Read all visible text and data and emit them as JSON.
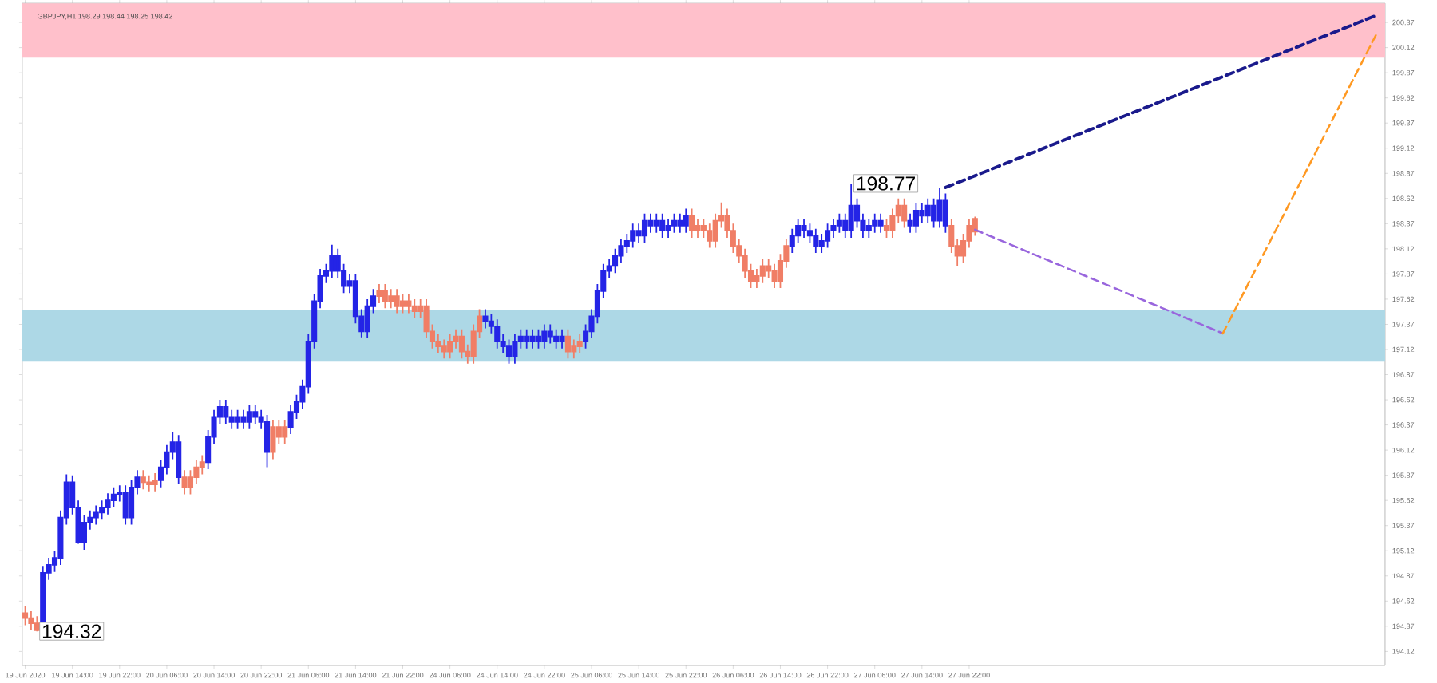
{
  "chart_data": {
    "type": "candlestick",
    "title": "GBPJPY,H1  198.29 198.44 198.25 198.42",
    "categories": [
      "19 Jun 2020",
      null,
      null,
      null,
      null,
      null,
      null,
      null,
      "19 Jun 14:00",
      null,
      null,
      null,
      null,
      null,
      null,
      null,
      "19 Jun 22:00",
      null,
      null,
      null,
      null,
      null,
      null,
      null,
      "20 Jun 06:00",
      null,
      null,
      null,
      null,
      null,
      null,
      null,
      "20 Jun 14:00",
      null,
      null,
      null,
      null,
      null,
      null,
      null,
      "20 Jun 22:00",
      null,
      null,
      null,
      null,
      null,
      null,
      null,
      "21 Jun 06:00",
      null,
      null,
      null,
      null,
      null,
      null,
      null,
      "21 Jun 14:00",
      null,
      null,
      null,
      null,
      null,
      null,
      null,
      "21 Jun 22:00",
      null,
      null,
      null,
      null,
      null,
      null,
      null,
      "24 Jun 06:00",
      null,
      null,
      null,
      null,
      null,
      null,
      null,
      "24 Jun 14:00",
      null,
      null,
      null,
      null,
      null,
      null,
      null,
      "24 Jun 22:00",
      null,
      null,
      null,
      null,
      null,
      null,
      null,
      "25 Jun 06:00",
      null,
      null,
      null,
      null,
      null,
      null,
      null,
      "25 Jun 14:00",
      null,
      null,
      null,
      null,
      null,
      null,
      null,
      "25 Jun 22:00",
      null,
      null,
      null,
      null,
      null,
      null,
      null,
      "26 Jun 06:00",
      null,
      null,
      null,
      null,
      null,
      null,
      null,
      "26 Jun 14:00",
      null,
      null,
      null,
      null,
      null,
      null,
      null,
      "26 Jun 22:00",
      null,
      null,
      null,
      null,
      null,
      null,
      null,
      "27 Jun 06:00",
      null,
      null,
      null,
      null,
      null,
      null,
      null,
      "27 Jun 14:00",
      null,
      null,
      null,
      null,
      null,
      null,
      null,
      "27 Jun 22:00",
      null,
      null,
      null,
      null,
      null,
      null,
      null,
      null,
      null,
      null,
      null,
      null,
      null,
      null,
      null,
      null,
      null,
      null,
      null,
      null,
      null,
      null,
      null,
      null,
      null,
      null,
      null,
      null,
      null,
      null,
      null,
      null,
      null,
      null,
      null,
      null,
      null,
      null,
      null,
      null,
      null,
      null,
      null,
      null,
      null,
      null,
      null,
      null,
      null,
      null,
      null,
      null,
      null,
      null,
      null,
      null,
      null,
      null,
      null,
      null,
      null,
      null,
      null,
      null,
      null,
      null,
      null,
      null,
      null,
      null
    ],
    "ohlc": [
      [
        194.5,
        194.57,
        194.38,
        194.45
      ],
      [
        194.45,
        194.52,
        194.33,
        194.4
      ],
      [
        194.4,
        194.47,
        194.32,
        194.33
      ],
      [
        194.33,
        194.97,
        194.33,
        194.9
      ],
      [
        194.9,
        195.05,
        194.83,
        194.98
      ],
      [
        194.98,
        195.12,
        194.91,
        195.05
      ],
      [
        195.05,
        195.52,
        194.98,
        195.45
      ],
      [
        195.45,
        195.88,
        195.38,
        195.8
      ],
      [
        195.8,
        195.87,
        195.48,
        195.55
      ],
      [
        195.55,
        195.62,
        195.19,
        195.2
      ],
      [
        195.2,
        195.47,
        195.13,
        195.4
      ],
      [
        195.4,
        195.52,
        195.33,
        195.45
      ],
      [
        195.45,
        195.57,
        195.38,
        195.5
      ],
      [
        195.5,
        195.62,
        195.43,
        195.55
      ],
      [
        195.55,
        195.69,
        195.48,
        195.62
      ],
      [
        195.62,
        195.75,
        195.55,
        195.68
      ],
      [
        195.68,
        195.77,
        195.61,
        195.7
      ],
      [
        195.7,
        195.77,
        195.38,
        195.45
      ],
      [
        195.45,
        195.82,
        195.38,
        195.75
      ],
      [
        195.75,
        195.92,
        195.68,
        195.85
      ],
      [
        195.85,
        195.92,
        195.73,
        195.8
      ],
      [
        195.8,
        195.87,
        195.71,
        195.78
      ],
      [
        195.78,
        195.89,
        195.71,
        195.82
      ],
      [
        195.82,
        196.02,
        195.75,
        195.95
      ],
      [
        195.95,
        196.17,
        195.88,
        196.1
      ],
      [
        196.1,
        196.3,
        196.03,
        196.2
      ],
      [
        196.2,
        196.27,
        195.78,
        195.85
      ],
      [
        195.85,
        195.92,
        195.68,
        195.75
      ],
      [
        195.75,
        195.92,
        195.68,
        195.85
      ],
      [
        195.85,
        196.02,
        195.78,
        195.95
      ],
      [
        195.95,
        196.07,
        195.88,
        196.0
      ],
      [
        196.0,
        196.32,
        195.93,
        196.25
      ],
      [
        196.25,
        196.52,
        196.18,
        196.45
      ],
      [
        196.45,
        196.62,
        196.38,
        196.55
      ],
      [
        196.55,
        196.62,
        196.38,
        196.45
      ],
      [
        196.45,
        196.52,
        196.33,
        196.4
      ],
      [
        196.4,
        196.52,
        196.33,
        196.45
      ],
      [
        196.45,
        196.52,
        196.33,
        196.4
      ],
      [
        196.4,
        196.57,
        196.33,
        196.5
      ],
      [
        196.5,
        196.57,
        196.38,
        196.45
      ],
      [
        196.45,
        196.52,
        196.33,
        196.4
      ],
      [
        196.4,
        196.47,
        195.95,
        196.1
      ],
      [
        196.1,
        196.42,
        196.03,
        196.35
      ],
      [
        196.35,
        196.42,
        196.18,
        196.25
      ],
      [
        196.25,
        196.42,
        196.18,
        196.35
      ],
      [
        196.35,
        196.57,
        196.28,
        196.5
      ],
      [
        196.5,
        196.67,
        196.43,
        196.6
      ],
      [
        196.6,
        196.82,
        196.53,
        196.75
      ],
      [
        196.75,
        197.27,
        196.68,
        197.2
      ],
      [
        197.2,
        197.67,
        197.13,
        197.6
      ],
      [
        197.6,
        197.92,
        197.53,
        197.85
      ],
      [
        197.85,
        197.97,
        197.78,
        197.9
      ],
      [
        197.9,
        198.16,
        197.83,
        198.05
      ],
      [
        198.05,
        198.12,
        197.83,
        197.9
      ],
      [
        197.9,
        197.97,
        197.68,
        197.75
      ],
      [
        197.75,
        197.87,
        197.68,
        197.8
      ],
      [
        197.8,
        197.87,
        197.38,
        197.45
      ],
      [
        197.45,
        197.52,
        197.24,
        197.3
      ],
      [
        197.3,
        197.62,
        197.23,
        197.55
      ],
      [
        197.55,
        197.72,
        197.48,
        197.65
      ],
      [
        197.65,
        197.77,
        197.58,
        197.7
      ],
      [
        197.7,
        197.77,
        197.53,
        197.6
      ],
      [
        197.6,
        197.72,
        197.53,
        197.65
      ],
      [
        197.65,
        197.72,
        197.48,
        197.55
      ],
      [
        197.55,
        197.67,
        197.48,
        197.6
      ],
      [
        197.6,
        197.67,
        197.48,
        197.55
      ],
      [
        197.55,
        197.62,
        197.43,
        197.5
      ],
      [
        197.5,
        197.62,
        197.43,
        197.55
      ],
      [
        197.55,
        197.62,
        197.23,
        197.3
      ],
      [
        197.3,
        197.37,
        197.13,
        197.2
      ],
      [
        197.2,
        197.27,
        197.08,
        197.15
      ],
      [
        197.15,
        197.22,
        197.03,
        197.1
      ],
      [
        197.1,
        197.27,
        197.03,
        197.2
      ],
      [
        197.2,
        197.32,
        197.13,
        197.25
      ],
      [
        197.25,
        197.32,
        197.03,
        197.1
      ],
      [
        197.1,
        197.17,
        196.98,
        197.05
      ],
      [
        197.05,
        197.37,
        196.98,
        197.3
      ],
      [
        197.3,
        197.52,
        197.23,
        197.45
      ],
      [
        197.45,
        197.52,
        197.33,
        197.4
      ],
      [
        197.4,
        197.47,
        197.28,
        197.35
      ],
      [
        197.35,
        197.42,
        197.13,
        197.2
      ],
      [
        197.2,
        197.27,
        197.08,
        197.15
      ],
      [
        197.15,
        197.22,
        196.98,
        197.05
      ],
      [
        197.05,
        197.27,
        196.98,
        197.2
      ],
      [
        197.2,
        197.32,
        197.13,
        197.25
      ],
      [
        197.25,
        197.32,
        197.13,
        197.2
      ],
      [
        197.2,
        197.32,
        197.13,
        197.25
      ],
      [
        197.25,
        197.32,
        197.13,
        197.2
      ],
      [
        197.2,
        197.37,
        197.13,
        197.3
      ],
      [
        197.3,
        197.37,
        197.18,
        197.25
      ],
      [
        197.25,
        197.32,
        197.13,
        197.2
      ],
      [
        197.2,
        197.32,
        197.13,
        197.25
      ],
      [
        197.25,
        197.32,
        197.03,
        197.1
      ],
      [
        197.1,
        197.22,
        197.03,
        197.15
      ],
      [
        197.15,
        197.27,
        197.08,
        197.2
      ],
      [
        197.2,
        197.37,
        197.13,
        197.3
      ],
      [
        197.3,
        197.52,
        197.23,
        197.45
      ],
      [
        197.45,
        197.77,
        197.38,
        197.7
      ],
      [
        197.7,
        197.97,
        197.63,
        197.9
      ],
      [
        197.9,
        198.02,
        197.83,
        197.95
      ],
      [
        197.95,
        198.12,
        197.88,
        198.05
      ],
      [
        198.05,
        198.22,
        197.98,
        198.15
      ],
      [
        198.15,
        198.27,
        198.08,
        198.2
      ],
      [
        198.2,
        198.37,
        198.13,
        198.3
      ],
      [
        198.3,
        198.37,
        198.18,
        198.25
      ],
      [
        198.25,
        198.47,
        198.18,
        198.4
      ],
      [
        198.4,
        198.47,
        198.28,
        198.35
      ],
      [
        198.35,
        198.47,
        198.28,
        198.4
      ],
      [
        198.4,
        198.47,
        198.23,
        198.3
      ],
      [
        198.3,
        198.42,
        198.23,
        198.35
      ],
      [
        198.35,
        198.47,
        198.28,
        198.4
      ],
      [
        198.4,
        198.47,
        198.28,
        198.35
      ],
      [
        198.35,
        198.52,
        198.28,
        198.45
      ],
      [
        198.45,
        198.52,
        198.23,
        198.3
      ],
      [
        198.3,
        198.42,
        198.23,
        198.35
      ],
      [
        198.35,
        198.42,
        198.23,
        198.3
      ],
      [
        198.3,
        198.37,
        198.13,
        198.2
      ],
      [
        198.2,
        198.47,
        198.13,
        198.4
      ],
      [
        198.4,
        198.58,
        198.33,
        198.45
      ],
      [
        198.45,
        198.52,
        198.23,
        198.3
      ],
      [
        198.3,
        198.37,
        198.08,
        198.15
      ],
      [
        198.15,
        198.22,
        197.98,
        198.05
      ],
      [
        198.05,
        198.12,
        197.83,
        197.9
      ],
      [
        197.9,
        197.97,
        197.73,
        197.8
      ],
      [
        197.8,
        197.92,
        197.73,
        197.85
      ],
      [
        197.85,
        198.02,
        197.78,
        197.95
      ],
      [
        197.95,
        198.02,
        197.83,
        197.9
      ],
      [
        197.9,
        197.97,
        197.73,
        197.8
      ],
      [
        197.8,
        198.07,
        197.73,
        198.0
      ],
      [
        198.0,
        198.22,
        197.93,
        198.15
      ],
      [
        198.15,
        198.32,
        198.08,
        198.25
      ],
      [
        198.25,
        198.42,
        198.18,
        198.35
      ],
      [
        198.35,
        198.42,
        198.23,
        198.3
      ],
      [
        198.3,
        198.37,
        198.18,
        198.25
      ],
      [
        198.25,
        198.32,
        198.08,
        198.15
      ],
      [
        198.15,
        198.27,
        198.08,
        198.2
      ],
      [
        198.2,
        198.37,
        198.13,
        198.3
      ],
      [
        198.3,
        198.42,
        198.23,
        198.35
      ],
      [
        198.35,
        198.47,
        198.28,
        198.4
      ],
      [
        198.4,
        198.47,
        198.23,
        198.3
      ],
      [
        198.3,
        198.77,
        198.23,
        198.55
      ],
      [
        198.55,
        198.62,
        198.33,
        198.4
      ],
      [
        198.4,
        198.47,
        198.23,
        198.3
      ],
      [
        198.3,
        198.42,
        198.23,
        198.35
      ],
      [
        198.35,
        198.47,
        198.28,
        198.4
      ],
      [
        198.4,
        198.47,
        198.28,
        198.35
      ],
      [
        198.35,
        198.42,
        198.23,
        198.3
      ],
      [
        198.3,
        198.52,
        198.23,
        198.45
      ],
      [
        198.45,
        198.62,
        198.38,
        198.55
      ],
      [
        198.55,
        198.62,
        198.33,
        198.4
      ],
      [
        198.4,
        198.47,
        198.28,
        198.35
      ],
      [
        198.35,
        198.57,
        198.28,
        198.5
      ],
      [
        198.5,
        198.57,
        198.38,
        198.45
      ],
      [
        198.45,
        198.62,
        198.38,
        198.55
      ],
      [
        198.55,
        198.62,
        198.33,
        198.4
      ],
      [
        198.4,
        198.73,
        198.33,
        198.6
      ],
      [
        198.6,
        198.67,
        198.28,
        198.35
      ],
      [
        198.35,
        198.42,
        198.08,
        198.15
      ],
      [
        198.15,
        198.22,
        197.95,
        198.05
      ],
      [
        198.05,
        198.27,
        197.98,
        198.2
      ],
      [
        198.2,
        198.42,
        198.13,
        198.35
      ],
      [
        198.29,
        198.44,
        198.25,
        198.42
      ],
      null,
      null,
      null,
      null,
      null,
      null,
      null,
      null,
      null,
      null,
      null,
      null,
      null,
      null,
      null,
      null,
      null,
      null,
      null,
      null,
      null,
      null,
      null,
      null,
      null,
      null,
      null,
      null,
      null,
      null,
      null,
      null,
      null,
      null,
      null,
      null,
      null,
      null,
      null,
      null,
      null,
      null,
      null,
      null,
      null,
      null,
      null,
      null,
      null,
      null,
      null,
      null,
      null,
      null,
      null,
      null,
      null,
      null,
      null,
      null,
      null,
      null,
      null,
      null,
      null,
      null,
      null,
      null,
      null
    ],
    "colors": [
      "#f07e66",
      "#f07e66",
      "#f07e66",
      "#2424e6",
      "#2424e6",
      "#2424e6",
      "#2424e6",
      "#2424e6",
      "#2424e6",
      "#2424e6",
      "#2424e6",
      "#2424e6",
      "#2424e6",
      "#2424e6",
      "#2424e6",
      "#2424e6",
      "#2424e6",
      "#2424e6",
      "#2424e6",
      "#2424e6",
      "#f07e66",
      "#f07e66",
      "#f07e66",
      "#2424e6",
      "#2424e6",
      "#2424e6",
      "#2424e6",
      "#f07e66",
      "#f07e66",
      "#f07e66",
      "#f07e66",
      "#2424e6",
      "#2424e6",
      "#2424e6",
      "#2424e6",
      "#2424e6",
      "#2424e6",
      "#2424e6",
      "#2424e6",
      "#2424e6",
      "#2424e6",
      "#2424e6",
      "#f07e66",
      "#f07e66",
      "#f07e66",
      "#2424e6",
      "#2424e6",
      "#2424e6",
      "#2424e6",
      "#2424e6",
      "#2424e6",
      "#2424e6",
      "#2424e6",
      "#2424e6",
      "#2424e6",
      "#2424e6",
      "#2424e6",
      "#2424e6",
      "#2424e6",
      "#2424e6",
      "#f07e66",
      "#f07e66",
      "#f07e66",
      "#f07e66",
      "#f07e66",
      "#f07e66",
      "#f07e66",
      "#f07e66",
      "#f07e66",
      "#f07e66",
      "#f07e66",
      "#f07e66",
      "#f07e66",
      "#f07e66",
      "#f07e66",
      "#f07e66",
      "#f07e66",
      "#f07e66",
      "#2424e6",
      "#2424e6",
      "#2424e6",
      "#2424e6",
      "#2424e6",
      "#2424e6",
      "#2424e6",
      "#2424e6",
      "#2424e6",
      "#2424e6",
      "#2424e6",
      "#2424e6",
      "#2424e6",
      "#2424e6",
      "#f07e66",
      "#f07e66",
      "#f07e66",
      "#2424e6",
      "#2424e6",
      "#2424e6",
      "#2424e6",
      "#2424e6",
      "#2424e6",
      "#2424e6",
      "#2424e6",
      "#2424e6",
      "#2424e6",
      "#2424e6",
      "#2424e6",
      "#2424e6",
      "#2424e6",
      "#2424e6",
      "#2424e6",
      "#2424e6",
      "#2424e6",
      "#f07e66",
      "#f07e66",
      "#f07e66",
      "#f07e66",
      "#f07e66",
      "#f07e66",
      "#f07e66",
      "#f07e66",
      "#f07e66",
      "#f07e66",
      "#f07e66",
      "#f07e66",
      "#f07e66",
      "#f07e66",
      "#f07e66",
      "#f07e66",
      "#f07e66",
      "#2424e6",
      "#2424e6",
      "#2424e6",
      "#2424e6",
      "#2424e6",
      "#2424e6",
      "#2424e6",
      "#2424e6",
      "#2424e6",
      "#2424e6",
      "#2424e6",
      "#2424e6",
      "#2424e6",
      "#2424e6",
      "#2424e6",
      "#2424e6",
      "#f07e66",
      "#f07e66",
      "#f07e66",
      "#f07e66",
      "#2424e6",
      "#2424e6",
      "#2424e6",
      "#2424e6",
      "#2424e6",
      "#2424e6",
      "#2424e6",
      "#f07e66",
      "#f07e66",
      "#f07e66",
      "#f07e66",
      "#f07e66",
      null,
      null,
      null,
      null,
      null,
      null,
      null,
      null,
      null,
      null,
      null,
      null,
      null,
      null,
      null,
      null,
      null,
      null,
      null,
      null,
      null,
      null,
      null,
      null,
      null,
      null,
      null,
      null,
      null,
      null,
      null,
      null,
      null,
      null,
      null,
      null,
      null,
      null,
      null,
      null,
      null,
      null,
      null,
      null,
      null,
      null,
      null,
      null,
      null,
      null,
      null,
      null,
      null,
      null,
      null,
      null,
      null,
      null,
      null,
      null,
      null,
      null,
      null,
      null,
      null,
      null,
      null,
      null,
      null
    ],
    "series": [
      {
        "type": "line",
        "color": "#1a1a8c",
        "line_style": "dashed",
        "values": [
          null,
          null,
          null,
          null,
          null,
          null,
          null,
          null,
          null,
          null,
          null,
          null,
          null,
          null,
          null,
          null,
          null,
          null,
          null,
          null,
          null,
          null,
          null,
          null,
          null,
          null,
          null,
          null,
          null,
          null,
          null,
          null,
          null,
          null,
          null,
          null,
          null,
          null,
          null,
          null,
          null,
          null,
          null,
          null,
          null,
          null,
          null,
          null,
          null,
          null,
          null,
          null,
          null,
          null,
          null,
          null,
          null,
          null,
          null,
          null,
          null,
          null,
          null,
          null,
          null,
          null,
          null,
          null,
          null,
          null,
          null,
          null,
          null,
          null,
          null,
          null,
          null,
          null,
          null,
          null,
          null,
          null,
          null,
          null,
          null,
          null,
          null,
          null,
          null,
          null,
          null,
          null,
          null,
          null,
          null,
          null,
          null,
          null,
          null,
          null,
          null,
          null,
          null,
          null,
          null,
          null,
          null,
          null,
          null,
          null,
          null,
          null,
          null,
          null,
          null,
          null,
          null,
          null,
          null,
          null,
          null,
          null,
          null,
          null,
          null,
          null,
          null,
          null,
          null,
          null,
          null,
          null,
          null,
          null,
          null,
          null,
          null,
          null,
          null,
          null,
          null,
          null,
          null,
          null,
          null,
          null,
          null,
          null,
          null,
          null,
          null,
          null,
          null,
          null,
          null,
          null,
          198.73,
          null,
          null,
          null,
          null,
          null,
          null,
          null,
          null,
          null,
          null,
          null,
          null,
          null,
          null,
          null,
          null,
          null,
          null,
          null,
          null,
          null,
          null,
          null,
          null,
          null,
          null,
          null,
          null,
          null,
          null,
          null,
          null,
          null,
          null,
          null,
          null,
          null,
          null,
          null,
          null,
          null,
          null,
          null,
          null,
          null,
          null,
          null,
          null,
          null,
          null,
          null,
          null,
          null,
          null,
          null,
          null,
          null,
          null,
          null,
          null,
          null,
          null,
          null,
          null,
          null,
          null,
          null,
          null,
          null,
          null,
          null,
          null,
          200.44,
          null
        ]
      },
      {
        "type": "line",
        "color": "#9966dd",
        "line_style": "dashed",
        "values": [
          null,
          null,
          null,
          null,
          null,
          null,
          null,
          null,
          null,
          null,
          null,
          null,
          null,
          null,
          null,
          null,
          null,
          null,
          null,
          null,
          null,
          null,
          null,
          null,
          null,
          null,
          null,
          null,
          null,
          null,
          null,
          null,
          null,
          null,
          null,
          null,
          null,
          null,
          null,
          null,
          null,
          null,
          null,
          null,
          null,
          null,
          null,
          null,
          null,
          null,
          null,
          null,
          null,
          null,
          null,
          null,
          null,
          null,
          null,
          null,
          null,
          null,
          null,
          null,
          null,
          null,
          null,
          null,
          null,
          null,
          null,
          null,
          null,
          null,
          null,
          null,
          null,
          null,
          null,
          null,
          null,
          null,
          null,
          null,
          null,
          null,
          null,
          null,
          null,
          null,
          null,
          null,
          null,
          null,
          null,
          null,
          null,
          null,
          null,
          null,
          null,
          null,
          null,
          null,
          null,
          null,
          null,
          null,
          null,
          null,
          null,
          null,
          null,
          null,
          null,
          null,
          null,
          null,
          null,
          null,
          null,
          null,
          null,
          null,
          null,
          null,
          null,
          null,
          null,
          null,
          null,
          null,
          null,
          null,
          null,
          null,
          null,
          null,
          null,
          null,
          null,
          null,
          null,
          null,
          null,
          null,
          null,
          null,
          null,
          null,
          null,
          null,
          null,
          null,
          null,
          null,
          null,
          null,
          null,
          null,
          null,
          198.31,
          null,
          null,
          null,
          null,
          null,
          null,
          null,
          null,
          null,
          null,
          null,
          null,
          null,
          null,
          null,
          null,
          null,
          null,
          null,
          null,
          null,
          null,
          null,
          null,
          null,
          null,
          null,
          null,
          null,
          null,
          null,
          null,
          null,
          null,
          null,
          null,
          null,
          null,
          null,
          null,
          null,
          197.28,
          null,
          null,
          null,
          null,
          null,
          null,
          null,
          null,
          null,
          null,
          null,
          null,
          null,
          null,
          null,
          null,
          null,
          null,
          null,
          null,
          null,
          null,
          null,
          null,
          null,
          null,
          null
        ]
      },
      {
        "type": "line",
        "color": "#ff9922",
        "line_style": "dashed",
        "values": [
          null,
          null,
          null,
          null,
          null,
          null,
          null,
          null,
          null,
          null,
          null,
          null,
          null,
          null,
          null,
          null,
          null,
          null,
          null,
          null,
          null,
          null,
          null,
          null,
          null,
          null,
          null,
          null,
          null,
          null,
          null,
          null,
          null,
          null,
          null,
          null,
          null,
          null,
          null,
          null,
          null,
          null,
          null,
          null,
          null,
          null,
          null,
          null,
          null,
          null,
          null,
          null,
          null,
          null,
          null,
          null,
          null,
          null,
          null,
          null,
          null,
          null,
          null,
          null,
          null,
          null,
          null,
          null,
          null,
          null,
          null,
          null,
          null,
          null,
          null,
          null,
          null,
          null,
          null,
          null,
          null,
          null,
          null,
          null,
          null,
          null,
          null,
          null,
          null,
          null,
          null,
          null,
          null,
          null,
          null,
          null,
          null,
          null,
          null,
          null,
          null,
          null,
          null,
          null,
          null,
          null,
          null,
          null,
          null,
          null,
          null,
          null,
          null,
          null,
          null,
          null,
          null,
          null,
          null,
          null,
          null,
          null,
          null,
          null,
          null,
          null,
          null,
          null,
          null,
          null,
          null,
          null,
          null,
          null,
          null,
          null,
          null,
          null,
          null,
          null,
          null,
          null,
          null,
          null,
          null,
          null,
          null,
          null,
          null,
          null,
          null,
          null,
          null,
          null,
          null,
          null,
          null,
          null,
          null,
          null,
          null,
          null,
          null,
          null,
          null,
          null,
          null,
          null,
          null,
          null,
          null,
          null,
          null,
          null,
          null,
          null,
          null,
          null,
          null,
          null,
          null,
          null,
          null,
          null,
          null,
          null,
          null,
          null,
          null,
          null,
          null,
          null,
          null,
          null,
          null,
          null,
          null,
          null,
          null,
          null,
          null,
          null,
          null,
          197.28,
          null,
          null,
          null,
          null,
          null,
          null,
          null,
          null,
          null,
          null,
          null,
          null,
          null,
          null,
          null,
          null,
          null,
          null,
          null,
          null,
          null,
          null,
          null,
          null,
          null,
          200.25,
          null
        ]
      }
    ],
    "bands": [
      {
        "axis": "y",
        "from": 200.02,
        "to": 200.56,
        "color": "#ffc0cb"
      },
      {
        "axis": "y",
        "from": 197.0,
        "to": 197.51,
        "color": "#add8e6"
      }
    ],
    "annotations": [
      "198.77",
      "194.32"
    ],
    "ylim": [
      193.98,
      200.56
    ],
    "yticks": [
      194.12,
      194.37,
      194.62,
      194.87,
      195.12,
      195.37,
      195.62,
      195.87,
      196.12,
      196.37,
      196.62,
      196.87,
      197.12,
      197.37,
      197.62,
      197.87,
      198.12,
      198.37,
      198.62,
      198.87,
      199.12,
      199.37,
      199.62,
      199.87,
      200.12,
      200.37
    ],
    "grid": false
  }
}
